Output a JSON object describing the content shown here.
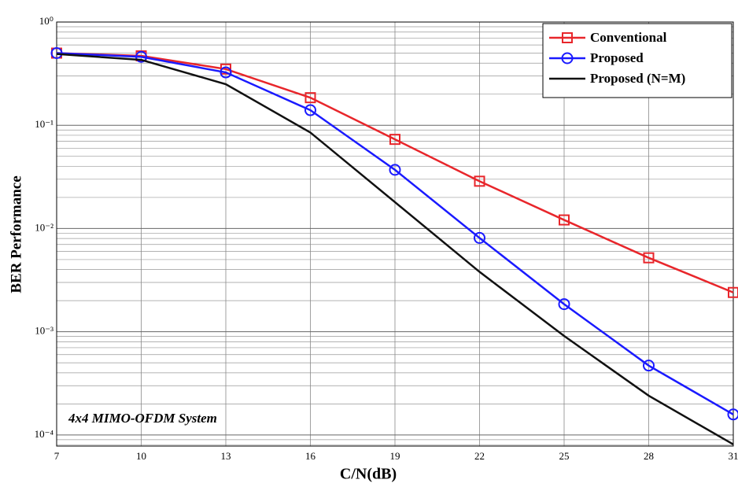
{
  "chart_data": {
    "type": "line",
    "x_label": "C/N(dB)",
    "y_label": "BER Performance",
    "annotation": "4x4 MIMO-OFDM System",
    "x": [
      7,
      10,
      13,
      16,
      19,
      22,
      25,
      28,
      31
    ],
    "xlim": [
      7,
      31
    ],
    "xticks": [
      7,
      10,
      13,
      16,
      19,
      22,
      25,
      28,
      31
    ],
    "ylim": [
      7.8e-05,
      1
    ],
    "y_log": true,
    "yticks": [
      {
        "value": 1,
        "label": "10⁰"
      },
      {
        "value": 0.1,
        "label": "10⁻¹"
      },
      {
        "value": 0.01,
        "label": "10⁻²"
      },
      {
        "value": 0.001,
        "label": "10⁻³"
      },
      {
        "value": 0.0001,
        "label": "10⁻⁴"
      }
    ],
    "grid": true,
    "minor_grid": true,
    "legend": "upper right",
    "series": [
      {
        "name": "Conventional",
        "color": "#e8262b",
        "marker": "square",
        "values": [
          0.5,
          0.47,
          0.35,
          0.185,
          0.073,
          0.0287,
          0.0121,
          0.0052,
          0.0024
        ]
      },
      {
        "name": "Proposed",
        "color": "#1a1aff",
        "marker": "circle",
        "values": [
          0.5,
          0.46,
          0.325,
          0.14,
          0.037,
          0.0081,
          0.00185,
          0.00047,
          0.000158
        ]
      },
      {
        "name": "Proposed (N=M)",
        "color": "#111111",
        "values": [
          0.49,
          0.43,
          0.25,
          0.085,
          0.018,
          0.0038,
          0.00091,
          0.00024,
          8.1e-05
        ]
      }
    ]
  }
}
